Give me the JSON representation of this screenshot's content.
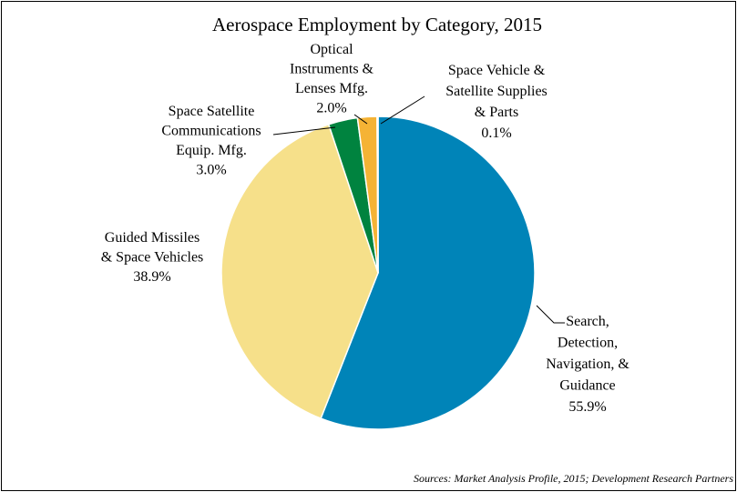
{
  "chart_data": {
    "type": "pie",
    "title": "Aerospace Employment by Category, 2015",
    "source": "Sources: Market Analysis Profile, 2015; Development Research Partners",
    "slices": [
      {
        "lines": [
          "Search,",
          "Detection,",
          "Navigation, &",
          "Guidance",
          "55.9%"
        ],
        "value": 55.9,
        "color": "#0084b8"
      },
      {
        "lines": [
          "Guided Missiles",
          "& Space Vehicles",
          "38.9%"
        ],
        "value": 38.9,
        "color": "#f6e08a"
      },
      {
        "lines": [
          "Space Satellite",
          "Communications",
          "Equip. Mfg.",
          "3.0%"
        ],
        "value": 3.0,
        "color": "#00833f"
      },
      {
        "lines": [
          "Optical",
          "Instruments &",
          "Lenses Mfg.",
          "2.0%"
        ],
        "value": 2.0,
        "color": "#f5b335"
      },
      {
        "lines": [
          "Space Vehicle &",
          "Satellite Supplies",
          "& Parts",
          "0.1%"
        ],
        "value": 0.1,
        "color": "#e8a020"
      }
    ]
  }
}
